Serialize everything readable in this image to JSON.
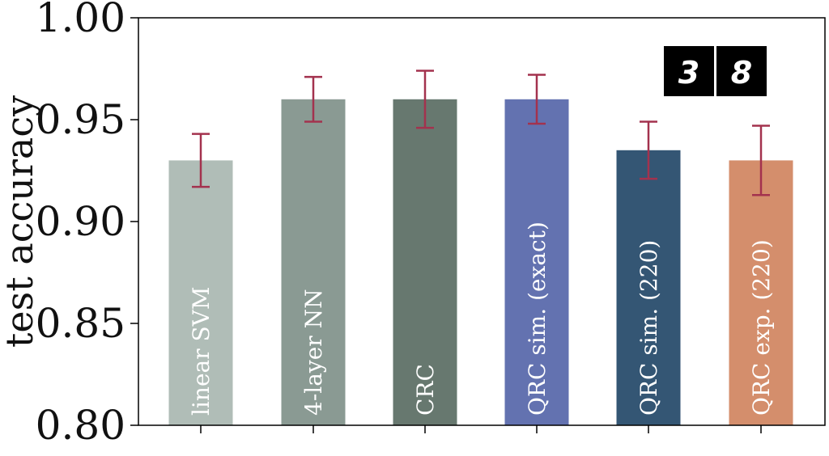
{
  "chart_data": {
    "type": "bar",
    "categories": [
      "linear SVM",
      "4-layer NN",
      "CRC",
      "QRC sim. (exact)",
      "QRC sim. (220)",
      "QRC exp. (220)"
    ],
    "values": [
      0.93,
      0.96,
      0.96,
      0.96,
      0.935,
      0.93
    ],
    "error_low": [
      0.917,
      0.949,
      0.946,
      0.948,
      0.921,
      0.913
    ],
    "error_high": [
      0.943,
      0.971,
      0.974,
      0.972,
      0.949,
      0.947
    ],
    "colors": [
      "#b0bdb7",
      "#8a9a93",
      "#67786f",
      "#6372b0",
      "#345674",
      "#d48e6c"
    ],
    "error_color": "#a3324e",
    "ylabel": "test accuracy",
    "ylim": [
      0.8,
      1.0
    ],
    "yticks": [
      "0.80",
      "0.85",
      "0.90",
      "0.95",
      "1.00"
    ],
    "grid": false,
    "inset": {
      "type": "image",
      "description_digits": [
        "3",
        "8"
      ]
    }
  }
}
